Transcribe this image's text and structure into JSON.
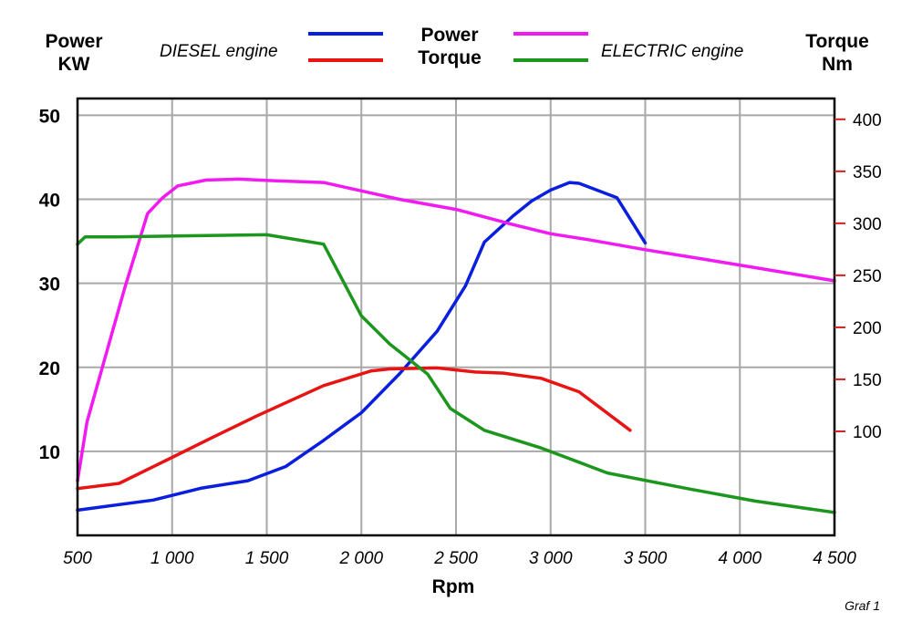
{
  "chart_data": {
    "type": "line",
    "left_axis_title": [
      "Power",
      "KW"
    ],
    "right_axis_title": [
      "Torque",
      "Nm"
    ],
    "xlabel": "Rpm",
    "footnote": "Graf 1",
    "legend": {
      "diesel_label": "DIESEL engine",
      "electric_label": "ELECTRIC engine",
      "power_label": "Power",
      "torque_label": "Torque"
    },
    "colors": {
      "diesel_power": "#0a1ee0",
      "diesel_torque": "#e81414",
      "electric_power": "#f21af2",
      "electric_torque": "#1c961c",
      "grid": "#a8a8a8",
      "right_ticks": "#d02020"
    },
    "xlim": [
      500,
      4500
    ],
    "x_ticks": [
      500,
      1000,
      1500,
      2000,
      2500,
      3000,
      3500,
      4000,
      4500
    ],
    "x_tick_labels": [
      "500",
      "1 000",
      "1 500",
      "2 000",
      "2 500",
      "3 000",
      "3 500",
      "4 000",
      "4 500"
    ],
    "ylim_left": [
      0,
      52
    ],
    "y_ticks_left": [
      10,
      20,
      30,
      40,
      50
    ],
    "y_tick_labels_left": [
      "10",
      "20",
      "30",
      "40",
      "50"
    ],
    "ylim_right": [
      0,
      420
    ],
    "y_ticks_right": [
      100,
      150,
      200,
      250,
      300,
      350,
      400
    ],
    "y_tick_labels_right": [
      "100",
      "150",
      "200",
      "250",
      "300",
      "350",
      "400"
    ],
    "grid": true,
    "series": [
      {
        "name": "DIESEL engine Power",
        "axis": "left",
        "color_key": "diesel_power",
        "x": [
          500,
          900,
          1150,
          1400,
          1600,
          1800,
          2000,
          2200,
          2400,
          2550,
          2650,
          2800,
          2900,
          3000,
          3100,
          3150,
          3350,
          3500
        ],
        "y": [
          3.0,
          4.2,
          5.6,
          6.5,
          8.2,
          11.3,
          14.6,
          19.2,
          24.3,
          29.7,
          34.9,
          38.0,
          39.8,
          41.1,
          42.0,
          41.9,
          40.2,
          34.8
        ]
      },
      {
        "name": "DIESEL engine Torque",
        "axis": "right",
        "color_key": "diesel_torque",
        "x": [
          500,
          720,
          1000,
          1200,
          1450,
          1800,
          2050,
          2150,
          2400,
          2600,
          2750,
          2950,
          3150,
          3420
        ],
        "y": [
          45,
          50,
          75,
          93,
          115,
          144,
          158,
          160,
          161,
          157,
          156,
          151,
          138,
          101
        ]
      },
      {
        "name": "ELECTRIC engine Power",
        "axis": "left",
        "color_key": "electric_power",
        "x": [
          500,
          550,
          650,
          750,
          870,
          950,
          1030,
          1180,
          1350,
          1550,
          1800,
          2000,
          2200,
          2500,
          2800,
          3000,
          3200,
          3500,
          3800,
          4100,
          4500
        ],
        "y": [
          6.5,
          13.5,
          21.5,
          29.5,
          38.3,
          40.2,
          41.6,
          42.3,
          42.4,
          42.2,
          42.0,
          41.0,
          40.0,
          38.8,
          37.0,
          35.9,
          35.2,
          34.0,
          32.9,
          31.8,
          30.3
        ]
      },
      {
        "name": "ELECTRIC engine Torque",
        "axis": "right",
        "color_key": "electric_torque",
        "x": [
          500,
          540,
          700,
          1100,
          1500,
          1800,
          2000,
          2150,
          2350,
          2470,
          2650,
          2950,
          3300,
          3750,
          4080,
          4500
        ],
        "y": [
          280,
          287,
          287,
          288,
          289,
          280,
          211,
          184,
          155,
          122,
          101,
          84,
          60,
          44,
          33,
          22
        ]
      }
    ]
  }
}
